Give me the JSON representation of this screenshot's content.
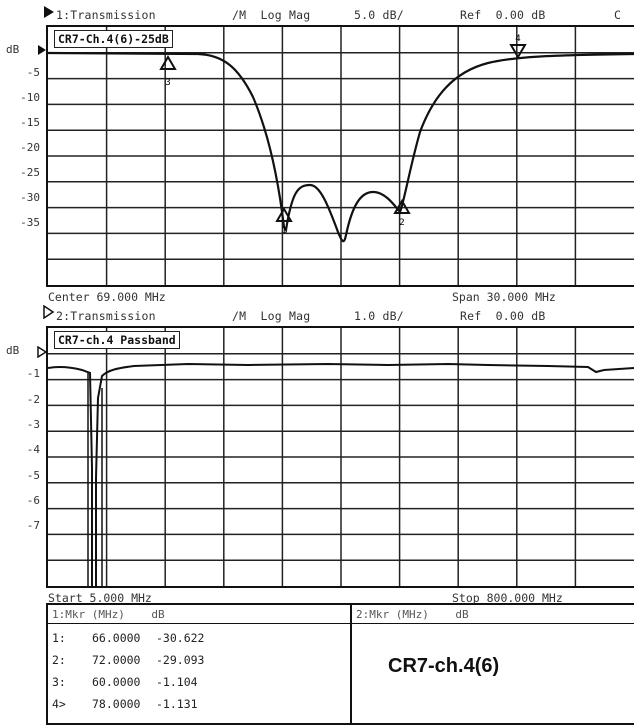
{
  "channel1": {
    "header": {
      "trace": "1:Transmission",
      "format": "/M  Log Mag",
      "scale": "5.0 dB/",
      "ref": "Ref  0.00 dB",
      "flag": "C"
    },
    "trace_label": "CR7-Ch.4(6)-25dB",
    "y_unit": "dB",
    "y_ticks": [
      "-5",
      "-10",
      "-15",
      "-20",
      "-25",
      "-30",
      "-35"
    ],
    "footer_left": "Center 69.000 MHz",
    "footer_right": "Span 30.000 MHz",
    "markers": [
      "1",
      "2",
      "3",
      "4"
    ]
  },
  "channel2": {
    "header": {
      "trace": "2:Transmission",
      "format": "/M  Log Mag",
      "scale": "1.0 dB/",
      "ref": "Ref  0.00 dB"
    },
    "trace_label": "CR7-ch.4 Passband",
    "y_unit": "dB",
    "y_ticks": [
      "-1",
      "-2",
      "-3",
      "-4",
      "-5",
      "-6",
      "-7"
    ],
    "footer_left": "Start 5.000 MHz",
    "footer_right": "Stop 800.000 MHz"
  },
  "marker_table": {
    "left_header": "1:Mkr (MHz)    dB",
    "right_header": "2:Mkr (MHz)    dB",
    "rows": [
      {
        "id": "1:",
        "freq": "66.0000",
        "db": "-30.622"
      },
      {
        "id": "2:",
        "freq": "72.0000",
        "db": "-29.093"
      },
      {
        "id": "3:",
        "freq": "60.0000",
        "db": "-1.104"
      },
      {
        "id": "4>",
        "freq": "78.0000",
        "db": "-1.131"
      }
    ],
    "caption": "CR7-ch.4(6)"
  }
}
